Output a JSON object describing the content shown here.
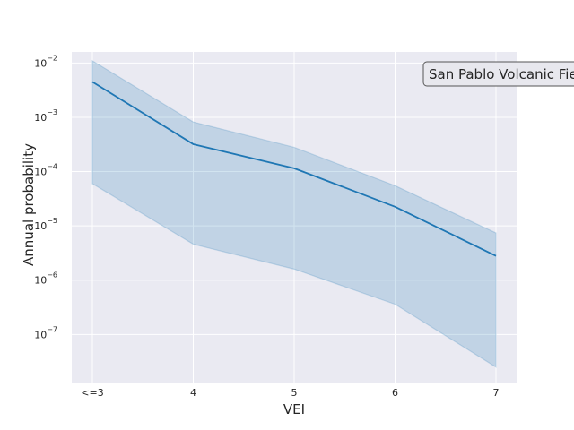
{
  "chart_data": {
    "type": "line",
    "x_scale": "categorical",
    "y_scale": "log",
    "categories": [
      "<=3",
      "4",
      "5",
      "6",
      "7"
    ],
    "series": [
      {
        "median": [
          0.0045,
          0.00032,
          0.000115,
          2.25e-05,
          2.8e-06
        ],
        "lower": [
          6e-05,
          4.6e-06,
          1.6e-06,
          3.6e-07,
          2.5e-08
        ],
        "upper": [
          0.011,
          0.00082,
          0.00028,
          5.5e-05,
          7.4e-06
        ],
        "color": "#1f77b4"
      }
    ],
    "xlabel": "VEI",
    "ylabel": "Annual probability",
    "y_ticks": [
      {
        "base": "10",
        "exp": "−7",
        "value": 1e-07
      },
      {
        "base": "10",
        "exp": "−6",
        "value": 1e-06
      },
      {
        "base": "10",
        "exp": "−5",
        "value": 1e-05
      },
      {
        "base": "10",
        "exp": "−4",
        "value": 0.0001
      },
      {
        "base": "10",
        "exp": "−3",
        "value": 0.001
      },
      {
        "base": "10",
        "exp": "−2",
        "value": 0.01
      }
    ],
    "ylim": [
      1.3e-08,
      0.016
    ],
    "grid": true,
    "annotation": "San Pablo Volcanic Field",
    "annotation_placement": "top-right",
    "colors": {
      "background": "#eaeaf2",
      "line": "#1f77b4",
      "band": "#1f77b4",
      "grid": "#ffffff"
    }
  }
}
